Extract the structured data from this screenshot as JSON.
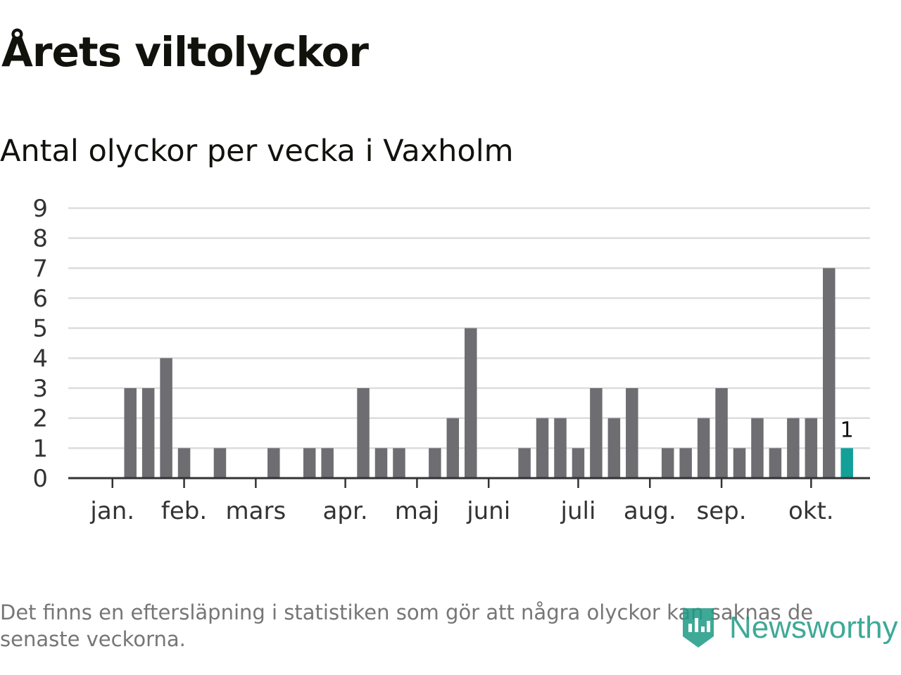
{
  "title": "Årets viltolyckor",
  "subtitle": "Antal olyckor per vecka i Vaxholm",
  "footnote": "Det finns en eftersläpning i statistiken som gör att några olyckor kan saknas de senaste veckorna.",
  "logo_text": "Newsworthy",
  "colors": {
    "bar": "#6e6d72",
    "highlight": "#12a098",
    "grid": "#dcdcdc",
    "axis": "#333333",
    "logo": "#1e9b86"
  },
  "chart_data": {
    "type": "bar",
    "y_ticks": [
      "0",
      "1",
      "2",
      "3",
      "4",
      "5",
      "6",
      "7",
      "8",
      "9"
    ],
    "ylim": [
      0,
      9
    ],
    "grid": true,
    "weeks": [
      1,
      2,
      3,
      4,
      5,
      6,
      7,
      8,
      9,
      10,
      11,
      12,
      13,
      14,
      15,
      16,
      17,
      18,
      19,
      20,
      21,
      22,
      23,
      24,
      25,
      26,
      27,
      28,
      29,
      30,
      31,
      32,
      33,
      34,
      35,
      36,
      37,
      38,
      39,
      40,
      41,
      42
    ],
    "values": [
      0,
      3,
      3,
      4,
      1,
      0,
      1,
      0,
      0,
      1,
      0,
      1,
      1,
      0,
      3,
      1,
      1,
      0,
      1,
      2,
      5,
      0,
      0,
      1,
      2,
      2,
      1,
      3,
      2,
      3,
      0,
      1,
      1,
      2,
      3,
      1,
      2,
      1,
      2,
      2,
      7,
      1
    ],
    "highlight_index": 41,
    "highlight_label": "1",
    "month_labels": [
      {
        "label": "jan.",
        "week": 1
      },
      {
        "label": "feb.",
        "week": 5
      },
      {
        "label": "mars",
        "week": 9
      },
      {
        "label": "apr.",
        "week": 14
      },
      {
        "label": "maj",
        "week": 18
      },
      {
        "label": "juni",
        "week": 22
      },
      {
        "label": "juli",
        "week": 27
      },
      {
        "label": "aug.",
        "week": 31
      },
      {
        "label": "sep.",
        "week": 35
      },
      {
        "label": "okt.",
        "week": 40
      }
    ]
  }
}
